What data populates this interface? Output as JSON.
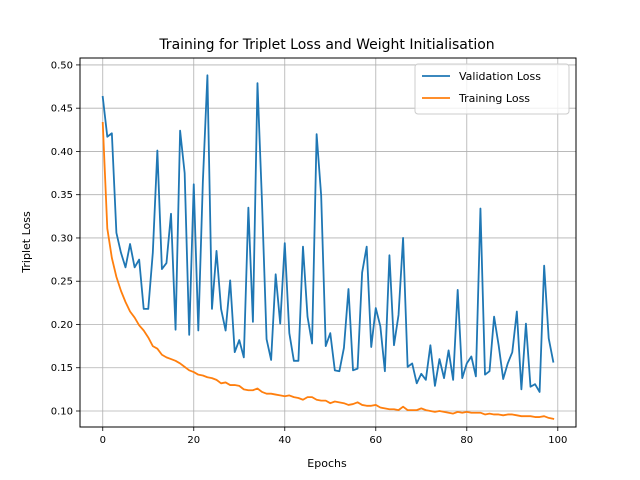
{
  "chart_data": {
    "type": "line",
    "title": "Training for Triplet Loss and Weight Initialisation",
    "xlabel": "Epochs",
    "ylabel": "Triplet Loss",
    "xlim": [
      -5,
      104
    ],
    "ylim": [
      0.0815,
      0.508
    ],
    "xticks": [
      0,
      20,
      40,
      60,
      80,
      100
    ],
    "yticks": [
      0.1,
      0.15,
      0.2,
      0.25,
      0.3,
      0.35,
      0.4,
      0.45,
      0.5
    ],
    "ytick_labels": [
      "0.10",
      "0.15",
      "0.20",
      "0.25",
      "0.30",
      "0.35",
      "0.40",
      "0.45",
      "0.50"
    ],
    "grid": true,
    "legend_position": "top-right",
    "series": [
      {
        "name": "Validation Loss",
        "color": "#1f77b4",
        "values": [
          0.463,
          0.417,
          0.421,
          0.306,
          0.283,
          0.266,
          0.293,
          0.266,
          0.275,
          0.218,
          0.218,
          0.283,
          0.401,
          0.264,
          0.271,
          0.328,
          0.194,
          0.424,
          0.375,
          0.188,
          0.362,
          0.193,
          0.365,
          0.488,
          0.218,
          0.285,
          0.218,
          0.193,
          0.251,
          0.168,
          0.182,
          0.162,
          0.335,
          0.203,
          0.479,
          0.341,
          0.183,
          0.159,
          0.258,
          0.201,
          0.294,
          0.19,
          0.158,
          0.158,
          0.29,
          0.209,
          0.178,
          0.42,
          0.349,
          0.175,
          0.19,
          0.147,
          0.146,
          0.173,
          0.241,
          0.147,
          0.149,
          0.26,
          0.29,
          0.174,
          0.219,
          0.198,
          0.146,
          0.28,
          0.176,
          0.211,
          0.3,
          0.151,
          0.155,
          0.132,
          0.143,
          0.136,
          0.176,
          0.129,
          0.16,
          0.138,
          0.17,
          0.136,
          0.24,
          0.138,
          0.155,
          0.163,
          0.14,
          0.334,
          0.142,
          0.146,
          0.209,
          0.176,
          0.137,
          0.155,
          0.168,
          0.215,
          0.125,
          0.201,
          0.128,
          0.131,
          0.122,
          0.268,
          0.184,
          0.157
        ]
      },
      {
        "name": "Training Loss",
        "color": "#ff7f0e",
        "values": [
          0.433,
          0.311,
          0.277,
          0.255,
          0.239,
          0.226,
          0.215,
          0.208,
          0.199,
          0.193,
          0.185,
          0.175,
          0.172,
          0.165,
          0.162,
          0.16,
          0.158,
          0.155,
          0.151,
          0.147,
          0.145,
          0.142,
          0.141,
          0.139,
          0.138,
          0.136,
          0.132,
          0.133,
          0.13,
          0.13,
          0.129,
          0.125,
          0.124,
          0.124,
          0.126,
          0.122,
          0.12,
          0.12,
          0.119,
          0.118,
          0.117,
          0.118,
          0.116,
          0.115,
          0.113,
          0.116,
          0.116,
          0.113,
          0.112,
          0.112,
          0.109,
          0.111,
          0.11,
          0.109,
          0.107,
          0.108,
          0.11,
          0.107,
          0.106,
          0.106,
          0.107,
          0.104,
          0.103,
          0.102,
          0.102,
          0.101,
          0.105,
          0.101,
          0.101,
          0.101,
          0.103,
          0.101,
          0.1,
          0.099,
          0.1,
          0.099,
          0.098,
          0.097,
          0.099,
          0.098,
          0.099,
          0.098,
          0.098,
          0.098,
          0.096,
          0.097,
          0.096,
          0.096,
          0.095,
          0.096,
          0.096,
          0.095,
          0.094,
          0.094,
          0.094,
          0.093,
          0.093,
          0.094,
          0.092,
          0.091
        ]
      }
    ]
  }
}
